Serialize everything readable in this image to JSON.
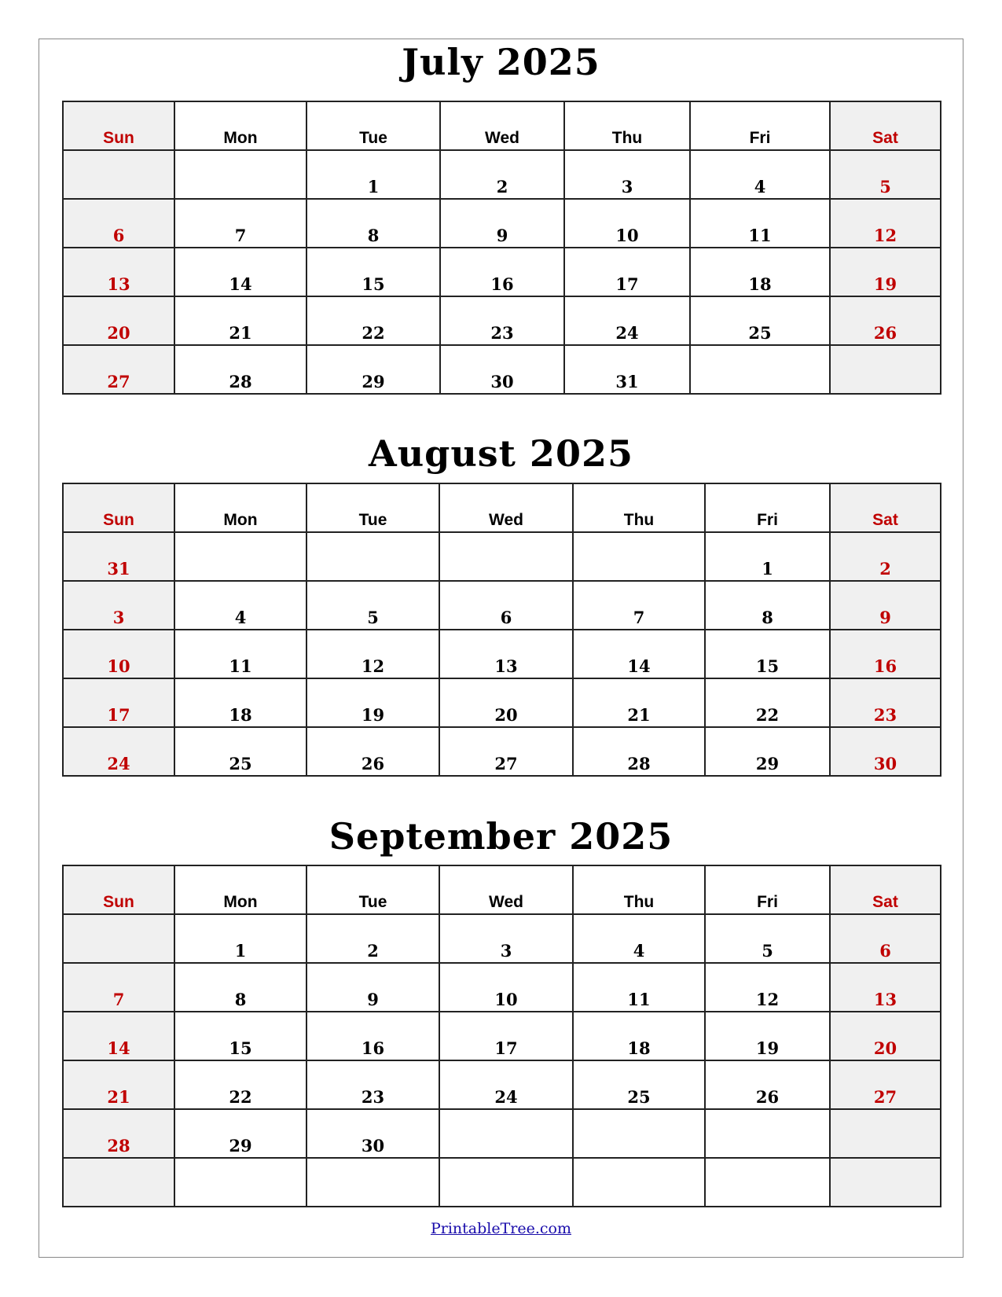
{
  "weekday_headers": [
    "Sun",
    "Mon",
    "Tue",
    "Wed",
    "Thu",
    "Fri",
    "Sat"
  ],
  "colors": {
    "weekend_text": "#c00000",
    "weekend_bg": "#f0f0f0",
    "border": "#222222",
    "link": "#1a0dab"
  },
  "months": [
    {
      "title": "July 2025",
      "weeks": [
        [
          "",
          "",
          "1",
          "2",
          "3",
          "4",
          "5"
        ],
        [
          "6",
          "7",
          "8",
          "9",
          "10",
          "11",
          "12"
        ],
        [
          "13",
          "14",
          "15",
          "16",
          "17",
          "18",
          "19"
        ],
        [
          "20",
          "21",
          "22",
          "23",
          "24",
          "25",
          "26"
        ],
        [
          "27",
          "28",
          "29",
          "30",
          "31",
          "",
          ""
        ]
      ]
    },
    {
      "title": "August 2025",
      "weeks": [
        [
          "31",
          "",
          "",
          "",
          "",
          "1",
          "2"
        ],
        [
          "3",
          "4",
          "5",
          "6",
          "7",
          "8",
          "9"
        ],
        [
          "10",
          "11",
          "12",
          "13",
          "14",
          "15",
          "16"
        ],
        [
          "17",
          "18",
          "19",
          "20",
          "21",
          "22",
          "23"
        ],
        [
          "24",
          "25",
          "26",
          "27",
          "28",
          "29",
          "30"
        ]
      ]
    },
    {
      "title": "September 2025",
      "weeks": [
        [
          "",
          "1",
          "2",
          "3",
          "4",
          "5",
          "6"
        ],
        [
          "7",
          "8",
          "9",
          "10",
          "11",
          "12",
          "13"
        ],
        [
          "14",
          "15",
          "16",
          "17",
          "18",
          "19",
          "20"
        ],
        [
          "21",
          "22",
          "23",
          "24",
          "25",
          "26",
          "27"
        ],
        [
          "28",
          "29",
          "30",
          "",
          "",
          "",
          ""
        ],
        [
          "",
          "",
          "",
          "",
          "",
          "",
          ""
        ]
      ]
    }
  ],
  "footer": {
    "link_text": "PrintableTree.com"
  }
}
